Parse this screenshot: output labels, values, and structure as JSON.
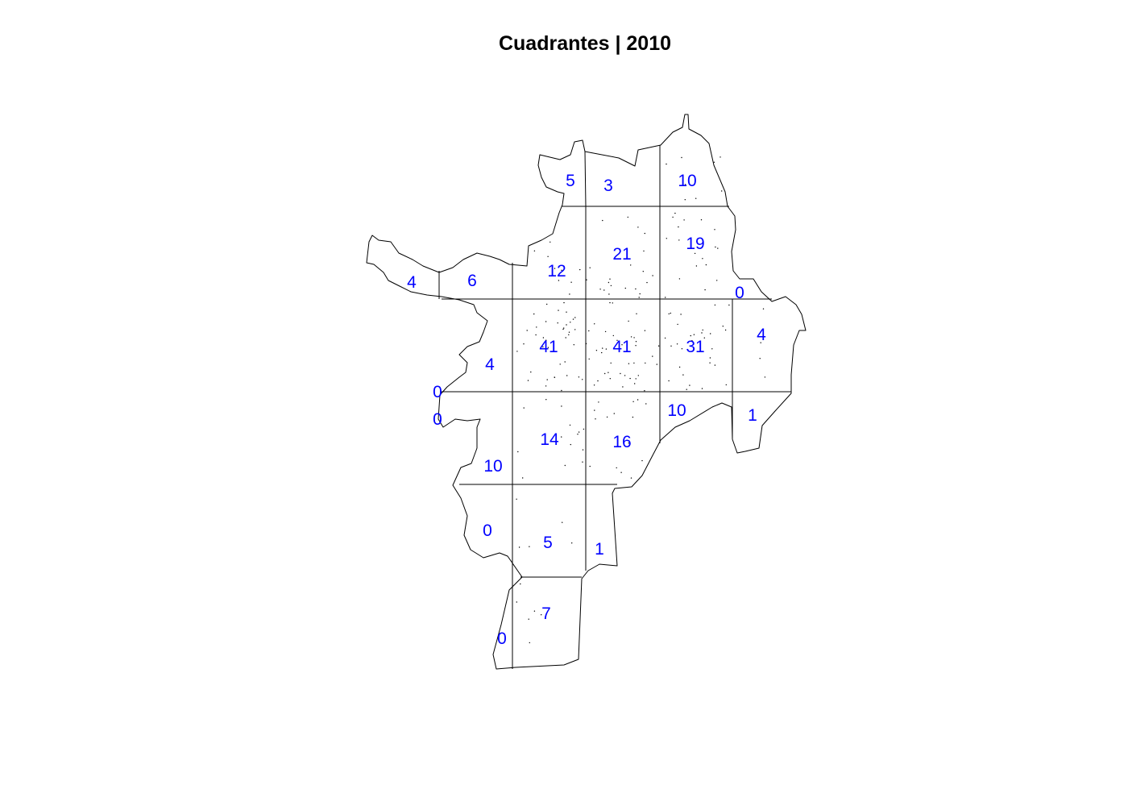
{
  "title": "Cuadrantes | 2010",
  "label_color": "#0000ff",
  "counts": [
    "5",
    "3",
    "10",
    "21",
    "19",
    "12",
    "4",
    "6",
    "0",
    "41",
    "41",
    "31",
    "4",
    "4",
    "0",
    "0",
    "10",
    "1",
    "14",
    "16",
    "10",
    "0",
    "5",
    "1",
    "7",
    "0"
  ]
}
